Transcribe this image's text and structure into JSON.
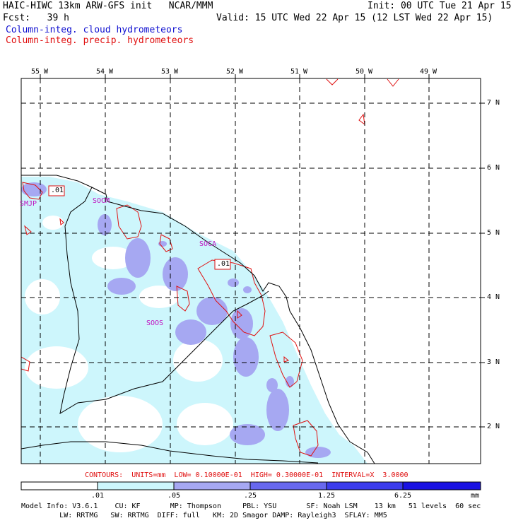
{
  "header": {
    "title": "HAIC-HIWC 13km ARW-GFS init   NCAR/MMM",
    "fcst": "Fcst:   39 h",
    "init": "Init: 00 UTC Tue 21 Apr 15",
    "valid": "Valid: 15 UTC Wed 22 Apr 15 (12 LST Wed 22 Apr 15)",
    "legend_blue": "Column-integ. cloud hydrometeors",
    "legend_red": "Column-integ. precip. hydrometeors"
  },
  "map": {
    "lon_labels": [
      "55 W",
      "54 W",
      "53 W",
      "52 W",
      "51 W",
      "50 W",
      "49 W"
    ],
    "lat_labels": [
      "7 N",
      "6 N",
      "5 N",
      "4 N",
      "3 N",
      "2 N"
    ],
    "station_labels": [
      "SMJP",
      "SOCM",
      "SOCA",
      "SOOS"
    ],
    "contour_labels": [
      ".01",
      ".01"
    ],
    "colors": {
      "level1": "#cdf6fc",
      "level2": "#a6a8f2",
      "level3": "#6868ee",
      "level4": "#3c3cec",
      "level5": "#1a12e2",
      "contour": "#e01010",
      "coast": "#000000"
    }
  },
  "contours_line": "CONTOURS:  UNITS=mm  LOW= 0.10000E-01  HIGH= 0.30000E-01  INTERVAL=X  3.0000",
  "colorbar": {
    "ticks": [
      ".01",
      ".05",
      ".25",
      "1.25",
      "6.25"
    ],
    "unit": "mm",
    "colors": [
      "#ffffff",
      "#cdf6fc",
      "#a6a8f2",
      "#6868ee",
      "#3c3cec",
      "#1a12e2"
    ]
  },
  "model_info": {
    "line1": "Model Info: V3.6.1    CU: KF       MP: Thompson     PBL: YSU       SF: Noah LSM    13 km   51 levels  60 sec",
    "line2": "         LW: RRTMG   SW: RRTMG  DIFF: full   KM: 2D Smagor DAMP: Rayleigh3  SFLAY: MM5"
  }
}
